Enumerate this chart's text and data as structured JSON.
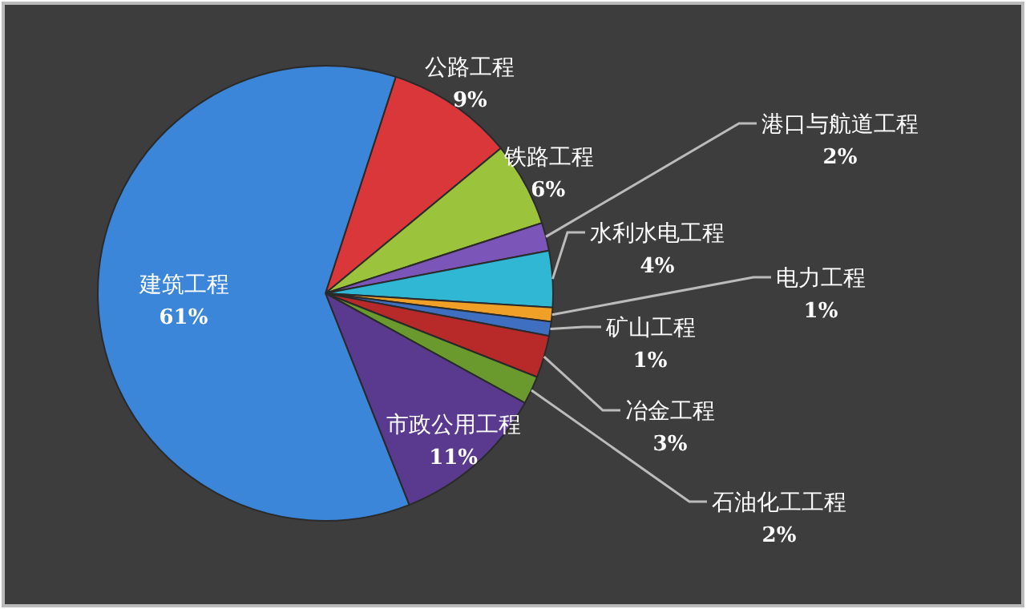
{
  "chart_data": {
    "type": "pie",
    "value_labels": [
      "9%",
      "6%",
      "2%",
      "4%",
      "1%",
      "1%",
      "3%",
      "2%",
      "11%",
      "61%"
    ],
    "categories": [
      "公路工程",
      "铁路工程",
      "港口与航道工程",
      "水利水电工程",
      "电力工程",
      "矿山工程",
      "冶金工程",
      "石油化工工程",
      "市政公用工程",
      "建筑工程"
    ],
    "values": [
      9,
      6,
      2,
      4,
      1,
      1,
      3,
      2,
      11,
      61
    ],
    "colors": [
      "#d9373a",
      "#9bc43c",
      "#7b56b8",
      "#2fb7d4",
      "#f0a026",
      "#3e6fc0",
      "#b82a2a",
      "#6a9a2e",
      "#5a3a8e",
      "#3b86d8"
    ]
  }
}
